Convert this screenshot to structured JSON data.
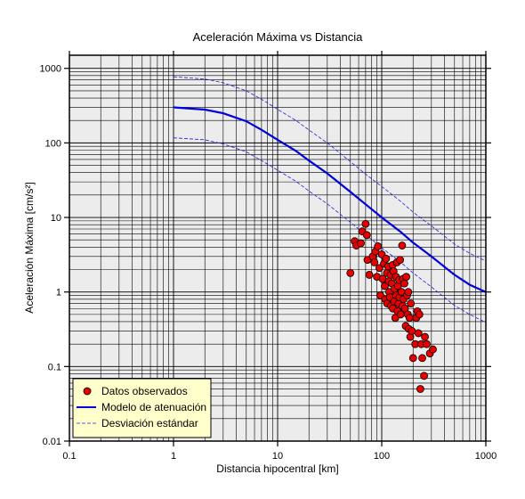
{
  "chart_data": {
    "type": "scatter",
    "title": "Aceleración Máxima vs Distancia",
    "xlabel": "Distancia hipocentral [km]",
    "ylabel": "Aceleración Máxima [cm/s²]",
    "x_scale": "log",
    "y_scale": "log",
    "xlim": [
      0.1,
      1000
    ],
    "ylim": [
      0.01,
      1500
    ],
    "x_ticks": [
      "0.1",
      "1",
      "10",
      "100",
      "1000"
    ],
    "y_ticks": [
      "0.01",
      "0.1",
      "1",
      "10",
      "100",
      "1000"
    ],
    "grid": true,
    "legend_position": "bottom-left",
    "colors": {
      "plot_background": "#ececec",
      "grid": "#000000",
      "points": "#e60000",
      "model_line": "#0000dd",
      "std_line": "#2222dd",
      "legend_background": "#ffffcc"
    },
    "series": [
      {
        "name": "Datos observados",
        "kind": "points",
        "points": [
          [
            50,
            1.8
          ],
          [
            55,
            4.8
          ],
          [
            57,
            4.2
          ],
          [
            63,
            4.5
          ],
          [
            65,
            6.5
          ],
          [
            70,
            8.2
          ],
          [
            72,
            5.8
          ],
          [
            73,
            2.7
          ],
          [
            76,
            1.7
          ],
          [
            82,
            3.0
          ],
          [
            85,
            2.5
          ],
          [
            87,
            3.5
          ],
          [
            90,
            1.6
          ],
          [
            92,
            4.1
          ],
          [
            95,
            2.1
          ],
          [
            97,
            0.9
          ],
          [
            100,
            3.2
          ],
          [
            102,
            1.5
          ],
          [
            105,
            2.4
          ],
          [
            107,
            1.2
          ],
          [
            108,
            0.8
          ],
          [
            110,
            2.8
          ],
          [
            112,
            1.8
          ],
          [
            113,
            0.7
          ],
          [
            115,
            2.2
          ],
          [
            117,
            1.4
          ],
          [
            118,
            1.0
          ],
          [
            120,
            0.85
          ],
          [
            122,
            1.7
          ],
          [
            123,
            0.65
          ],
          [
            125,
            1.3
          ],
          [
            127,
            2.3
          ],
          [
            128,
            0.6
          ],
          [
            130,
            1.9
          ],
          [
            132,
            0.75
          ],
          [
            133,
            1.1
          ],
          [
            135,
            0.45
          ],
          [
            137,
            1.6
          ],
          [
            138,
            0.9
          ],
          [
            140,
            2.5
          ],
          [
            142,
            0.55
          ],
          [
            143,
            1.2
          ],
          [
            145,
            0.7
          ],
          [
            147,
            1.45
          ],
          [
            148,
            0.85
          ],
          [
            150,
            2.7
          ],
          [
            152,
            0.5
          ],
          [
            155,
            1.0
          ],
          [
            157,
            4.2
          ],
          [
            158,
            0.65
          ],
          [
            160,
            1.5
          ],
          [
            162,
            0.8
          ],
          [
            165,
            1.3
          ],
          [
            167,
            0.6
          ],
          [
            170,
            0.35
          ],
          [
            172,
            1.6
          ],
          [
            175,
            0.9
          ],
          [
            178,
            0.5
          ],
          [
            180,
            1.0
          ],
          [
            182,
            0.32
          ],
          [
            185,
            0.45
          ],
          [
            188,
            0.25
          ],
          [
            190,
            0.7
          ],
          [
            195,
            0.3
          ],
          [
            200,
            0.13
          ],
          [
            210,
            0.2
          ],
          [
            215,
            0.45
          ],
          [
            220,
            0.55
          ],
          [
            225,
            0.28
          ],
          [
            230,
            0.5
          ],
          [
            235,
            0.05
          ],
          [
            240,
            0.2
          ],
          [
            245,
            0.13
          ],
          [
            255,
            0.075
          ],
          [
            260,
            0.25
          ],
          [
            270,
            0.2
          ],
          [
            290,
            0.15
          ],
          [
            310,
            0.17
          ]
        ]
      },
      {
        "name": "Modelo de atenuación",
        "kind": "line",
        "points": [
          [
            1,
            300
          ],
          [
            2,
            280
          ],
          [
            3,
            250
          ],
          [
            5,
            195
          ],
          [
            7,
            150
          ],
          [
            10,
            110
          ],
          [
            15,
            78
          ],
          [
            20,
            58
          ],
          [
            30,
            39
          ],
          [
            50,
            22
          ],
          [
            70,
            15
          ],
          [
            100,
            10
          ],
          [
            150,
            6.5
          ],
          [
            200,
            4.6
          ],
          [
            300,
            3.0
          ],
          [
            500,
            1.7
          ],
          [
            700,
            1.25
          ],
          [
            1000,
            1.0
          ]
        ]
      },
      {
        "name": "Desviación estándar",
        "kind": "dashed",
        "points": [
          [
            1,
            770
          ],
          [
            2,
            720
          ],
          [
            3,
            640
          ],
          [
            5,
            500
          ],
          [
            7,
            385
          ],
          [
            10,
            282
          ],
          [
            15,
            200
          ],
          [
            20,
            149
          ],
          [
            30,
            100
          ],
          [
            50,
            56
          ],
          [
            70,
            38
          ],
          [
            100,
            26
          ],
          [
            150,
            16.7
          ],
          [
            200,
            11.8
          ],
          [
            300,
            7.7
          ],
          [
            500,
            4.4
          ],
          [
            700,
            3.3
          ],
          [
            1000,
            2.6
          ]
        ]
      },
      {
        "name": "Desviación estándar",
        "kind": "dashed",
        "points": [
          [
            1,
            117
          ],
          [
            2,
            110
          ],
          [
            3,
            97
          ],
          [
            5,
            76
          ],
          [
            7,
            58
          ],
          [
            10,
            43
          ],
          [
            15,
            30.5
          ],
          [
            20,
            22.6
          ],
          [
            30,
            15.2
          ],
          [
            50,
            8.6
          ],
          [
            70,
            5.9
          ],
          [
            100,
            3.9
          ],
          [
            150,
            2.55
          ],
          [
            200,
            1.8
          ],
          [
            300,
            1.17
          ],
          [
            500,
            0.66
          ],
          [
            700,
            0.5
          ],
          [
            1000,
            0.39
          ]
        ]
      }
    ]
  },
  "legend": {
    "items": [
      {
        "label": "Datos observados",
        "marker": "circle"
      },
      {
        "label": "Modelo de atenuación",
        "marker": "solid-line"
      },
      {
        "label": "Desviación estándar",
        "marker": "dashed-line"
      }
    ]
  }
}
